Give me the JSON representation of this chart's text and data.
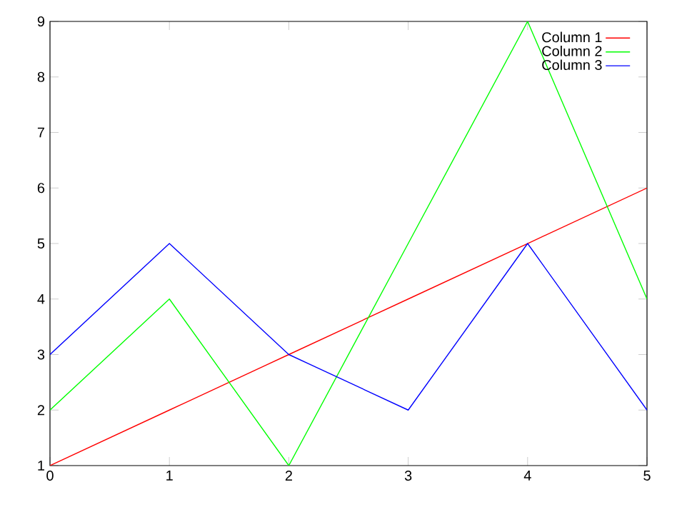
{
  "chart_data": {
    "type": "line",
    "x": [
      0,
      1,
      2,
      3,
      4,
      5
    ],
    "xlim": [
      0,
      5
    ],
    "ylim": [
      1,
      9
    ],
    "xticks": [
      0,
      1,
      2,
      3,
      4,
      5
    ],
    "yticks": [
      1,
      2,
      3,
      4,
      5,
      6,
      7,
      8,
      9
    ],
    "grid": false,
    "legend": "top right",
    "marker": "none",
    "line_style": "solid",
    "series": [
      {
        "name": "Column 1",
        "color": "#ff0000",
        "values": [
          1,
          2,
          3,
          4,
          5,
          6
        ]
      },
      {
        "name": "Column 2",
        "color": "#00ff00",
        "values": [
          2,
          4,
          1,
          5,
          9,
          4
        ]
      },
      {
        "name": "Column 3",
        "color": "#0000ff",
        "values": [
          3,
          5,
          3,
          2,
          5,
          2
        ]
      }
    ]
  }
}
